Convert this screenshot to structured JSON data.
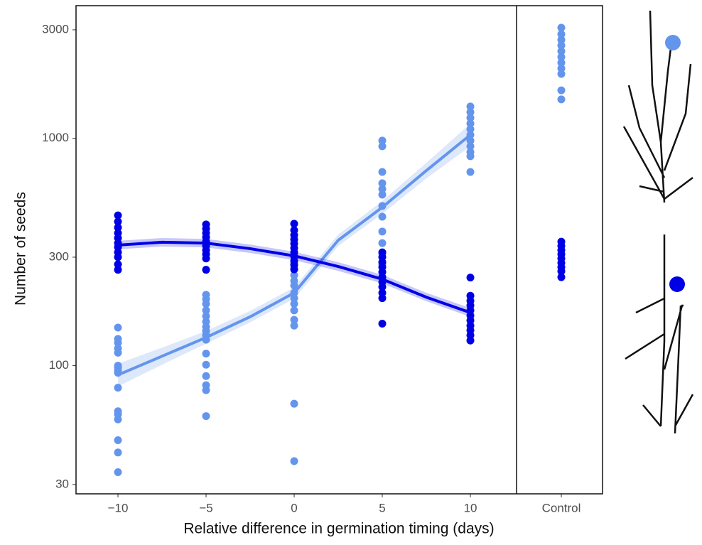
{
  "chart_data": {
    "type": "scatter",
    "y_label": "Number of seeds",
    "x_label": "Relative difference in germination timing (days)",
    "control_label": "Control",
    "ylog": true,
    "ylim": [
      27.3,
      3830
    ],
    "yticks": [
      30,
      100,
      300,
      1000,
      3000
    ],
    "xlim": [
      -12.38,
      12.62
    ],
    "xticks": [
      {
        "value": -10,
        "label": "−10"
      },
      {
        "value": -5,
        "label": "−5"
      },
      0,
      5,
      10
    ],
    "series": [
      {
        "color": "#6495ed",
        "x": [
          -10,
          -10,
          -10,
          -10,
          -10,
          -10,
          -10,
          -10,
          -10,
          -10,
          -10,
          -10,
          -10,
          -10,
          -10,
          -10,
          -5,
          -5,
          -5,
          -5,
          -5,
          -5,
          -5,
          -5,
          -5,
          -5,
          -5,
          -5,
          -5,
          -5,
          -5,
          -5,
          0,
          0,
          0,
          0,
          0,
          0,
          0,
          0,
          0,
          0,
          0,
          0,
          0,
          5,
          5,
          5,
          5,
          5,
          5,
          5,
          5,
          5,
          5,
          5,
          5,
          10,
          10,
          10,
          10,
          10,
          10,
          10,
          10,
          10,
          10,
          10
        ],
        "values": [
          147,
          131,
          126,
          119,
          114,
          100,
          98,
          95,
          93,
          80,
          63,
          61,
          58,
          47,
          41.5,
          34,
          205,
          196,
          187,
          175,
          165,
          156,
          148,
          142,
          136,
          130,
          113,
          101,
          90,
          82,
          78,
          60,
          283,
          267,
          250,
          236,
          225,
          209,
          198,
          187,
          175,
          159,
          150,
          68,
          38,
          977,
          922,
          711,
          634,
          598,
          565,
          504,
          452,
          389,
          346,
          311,
          279,
          1380,
          1302,
          1230,
          1161,
          1096,
          1035,
          977,
          922,
          870,
          834,
          711
        ],
        "control_values": [
          3065,
          2870,
          2710,
          2560,
          2415,
          2280,
          2150,
          2030,
          1920,
          1625,
          1483
        ]
      },
      {
        "color": "#0000e6",
        "x": [
          -10,
          -10,
          -10,
          -10,
          -10,
          -10,
          -10,
          -10,
          -10,
          -10,
          -10,
          -5,
          -5,
          -5,
          -5,
          -5,
          -5,
          -5,
          -5,
          -5,
          -5,
          0,
          0,
          0,
          0,
          0,
          0,
          0,
          0,
          0,
          0,
          0,
          5,
          5,
          5,
          5,
          5,
          5,
          5,
          5,
          5,
          5,
          5,
          10,
          10,
          10,
          10,
          10,
          10,
          10,
          10,
          10,
          10,
          10
        ],
        "values": [
          458,
          430,
          405,
          383,
          364,
          346,
          332,
          315,
          300,
          279,
          264,
          418,
          400,
          383,
          367,
          351,
          336,
          322,
          309,
          296,
          264,
          421,
          394,
          375,
          359,
          344,
          329,
          315,
          302,
          289,
          277,
          265,
          315,
          300,
          285,
          271,
          258,
          245,
          233,
          222,
          209,
          198,
          153,
          244,
          203,
          193,
          184,
          175,
          166,
          158,
          150,
          143,
          136,
          129
        ],
        "control_values": [
          351,
          336,
          322,
          309,
          296,
          283,
          271,
          260,
          245
        ]
      }
    ],
    "fits": [
      {
        "color": "#6495ed",
        "x": [
          -10,
          -7.5,
          -5,
          -2.5,
          0,
          2.5,
          5,
          7.5,
          10
        ],
        "values": [
          91,
          110,
          133,
          164,
          209,
          356,
          497,
          721,
          1035
        ],
        "upper": [
          102,
          120,
          142,
          174,
          221,
          377,
          530,
          780,
          1161
        ],
        "lower": [
          81,
          101,
          125,
          155,
          197,
          336,
          466,
          666,
          922
        ]
      },
      {
        "color": "#0000e6",
        "x": [
          -10,
          -7.5,
          -5,
          -2.5,
          0,
          2.5,
          5,
          7.5,
          10
        ],
        "values": [
          339,
          349,
          346,
          327,
          304,
          273,
          240,
          200,
          171
        ],
        "upper": [
          354,
          364,
          361,
          341,
          317,
          285,
          251,
          209,
          179
        ],
        "lower": [
          325,
          334,
          331,
          313,
          291,
          261,
          230,
          192,
          164
        ]
      }
    ]
  }
}
